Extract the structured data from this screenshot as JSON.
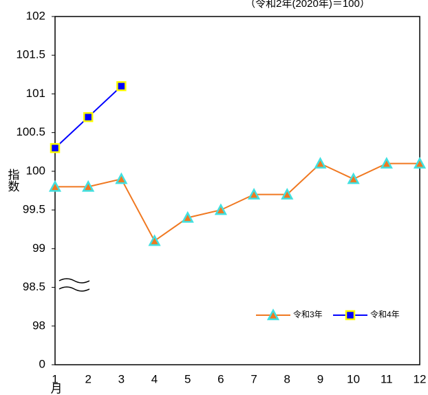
{
  "chart_data": {
    "type": "line",
    "subtitle": "（令和2年(2020年)＝100）",
    "y_label": "指数",
    "x_label": "月",
    "categories": [
      "1",
      "2",
      "3",
      "4",
      "5",
      "6",
      "7",
      "8",
      "9",
      "10",
      "11",
      "12"
    ],
    "series": [
      {
        "name": "令和3年",
        "color": "#f07820",
        "marker": "triangle",
        "marker_color": "#40e0e0",
        "values": [
          99.8,
          99.8,
          99.9,
          99.1,
          99.4,
          99.5,
          99.7,
          99.7,
          100.1,
          99.9,
          100.1,
          100.1
        ]
      },
      {
        "name": "令和4年",
        "color": "#0000ff",
        "marker": "square",
        "marker_color": "#ffff00",
        "values": [
          100.3,
          100.7,
          101.1,
          null,
          null,
          null,
          null,
          null,
          null,
          null,
          null,
          null
        ]
      }
    ],
    "ylim": [
      0,
      102
    ],
    "yticks": [
      0,
      98,
      98.5,
      99,
      99.5,
      100,
      100.5,
      101,
      101.5,
      102
    ],
    "axis_break": true,
    "grid": false,
    "legend": "lower right"
  }
}
